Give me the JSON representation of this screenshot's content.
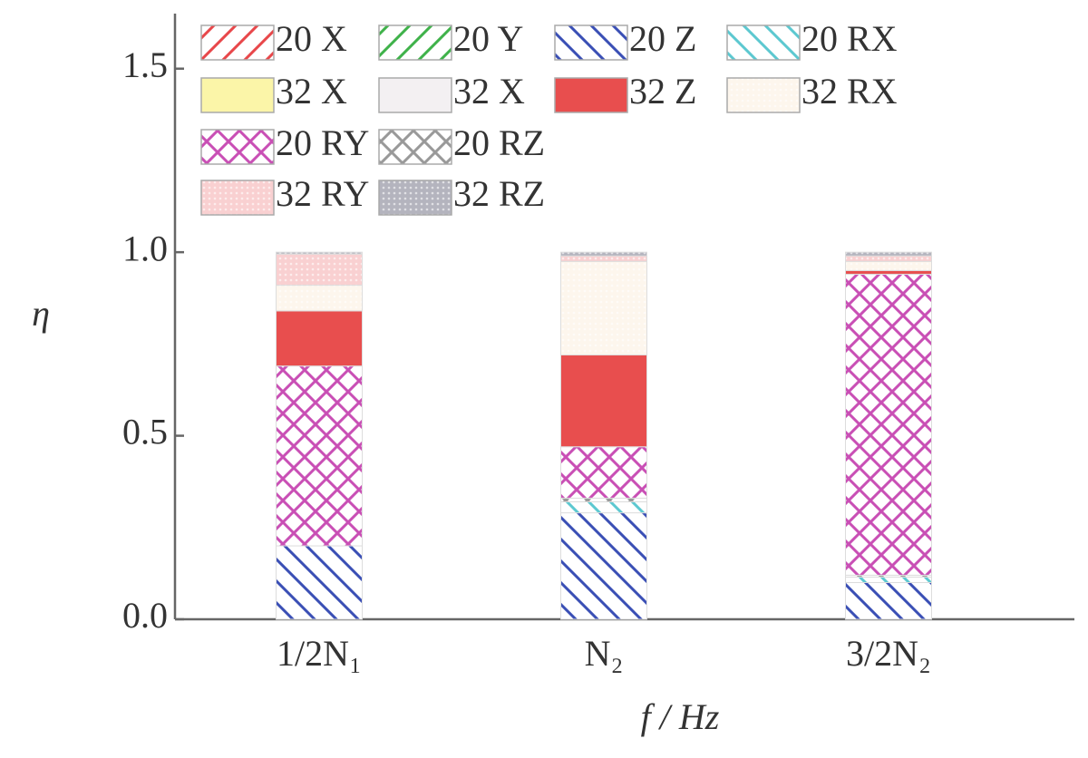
{
  "chart_data": {
    "type": "stacked-bar",
    "x_label": "f / Hz",
    "y_label": "η",
    "categories": [
      "1/2N₁",
      "N₂",
      "3/2N₂"
    ],
    "ylim": [
      0,
      1.65
    ],
    "yticks": [
      {
        "value": 0,
        "label": "0.0"
      },
      0.5,
      {
        "value": 1,
        "label": "1.0"
      },
      1.5
    ],
    "series": [
      {
        "name": "20 X",
        "color": "#e8474a",
        "values": [
          0,
          0,
          0
        ]
      },
      {
        "name": "20 Y",
        "color": "#3fb24a",
        "values": [
          0,
          0,
          0
        ]
      },
      {
        "name": "20 Z",
        "color": "#3a4fb5",
        "values": [
          0.2,
          0.29,
          0.1
        ]
      },
      {
        "name": "20 RX",
        "color": "#5cc8d0",
        "values": [
          0,
          0.03,
          0.015
        ]
      },
      {
        "name": "20 RZ",
        "color": "#999999",
        "values": [
          0,
          0.01,
          0.005
        ]
      },
      {
        "name": "20 RY",
        "color": "#c94fb5",
        "values": [
          0.49,
          0.14,
          0.82
        ]
      },
      {
        "name": "32 X",
        "color": "#fbf5a8",
        "values": [
          0,
          0,
          0
        ]
      },
      {
        "name": "32 X",
        "color": "#f3f0f2",
        "values": [
          0,
          0,
          0
        ]
      },
      {
        "name": "32 Z",
        "color": "#e84e4e",
        "values": [
          0.15,
          0.25,
          0.01
        ]
      },
      {
        "name": "32 RX",
        "color": "#fbeedd",
        "values": [
          0.07,
          0.255,
          0.025
        ]
      },
      {
        "name": "32 RY",
        "color": "#f4a9aa",
        "values": [
          0.085,
          0.015,
          0.015
        ]
      },
      {
        "name": "32 RZ",
        "color": "#777788",
        "values": [
          0.005,
          0.01,
          0.01
        ]
      }
    ]
  }
}
